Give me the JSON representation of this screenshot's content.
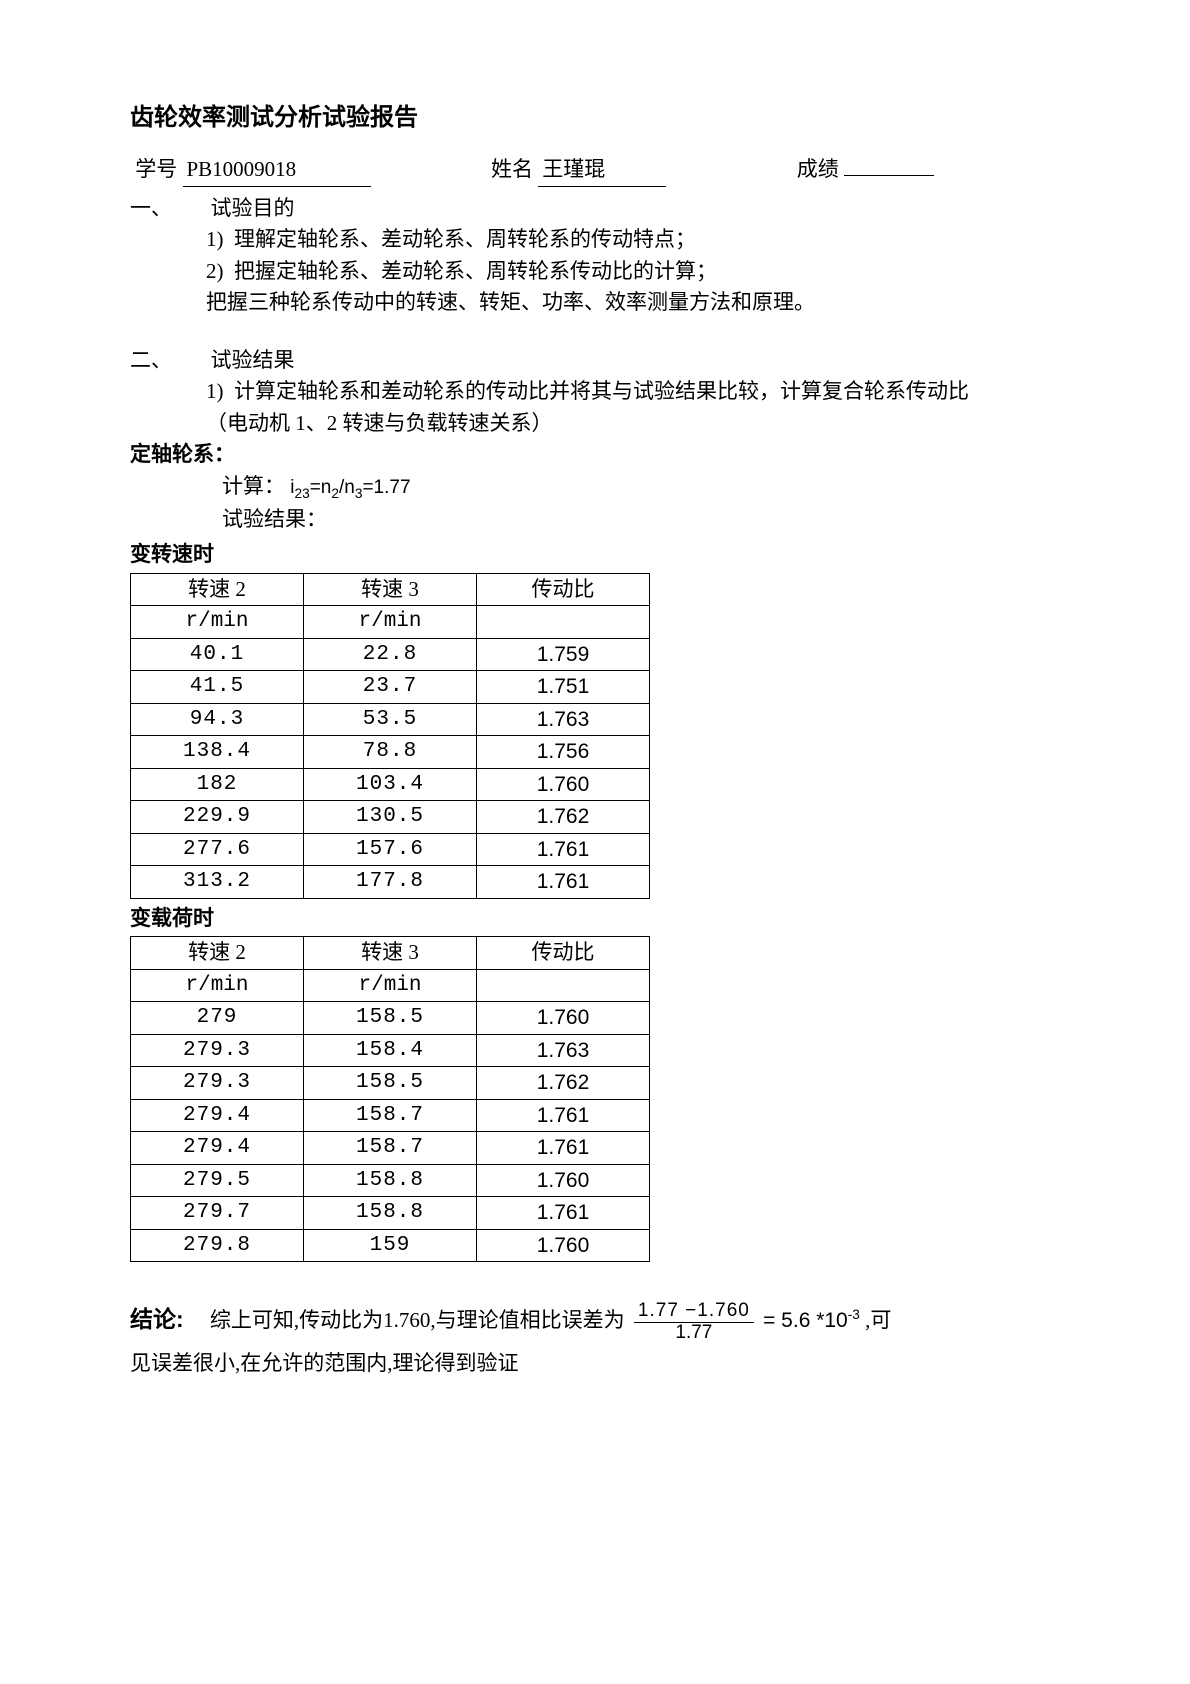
{
  "title": "齿轮效率测试分析试验报告",
  "info": {
    "id_label": "学号",
    "id_value": "PB10009018",
    "name_label": "姓名",
    "name_value": "王瑾琨",
    "score_label": "成绩"
  },
  "sec1": {
    "num": "一、",
    "head": "试验目的",
    "item1_num": "1)",
    "item1": "理解定轴轮系、差动轮系、周转轮系的传动特点；",
    "item2_num": "2)",
    "item2": "把握定轴轮系、差动轮系、周转轮系传动比的计算；",
    "item3": "把握三种轮系传动中的转速、转矩、功率、效率测量方法和原理。"
  },
  "sec2": {
    "num": "二、",
    "head": "试验结果",
    "item1_num": "1)",
    "item1": "计算定轴轮系和差动轮系的传动比并将其与试验结果比较，计算复合轮系传动比（电动机 1、2 转速与负载转速关系）"
  },
  "fixed_axis_label": "定轴轮系：",
  "calc_label": "计算：",
  "formula_text": "i₍₂₃₎=n₂/n₃=1.77",
  "exp_result_label": "试验结果：",
  "var_speed_label": "变转速时",
  "var_load_label": "变载荷时",
  "table_headers": {
    "c1": "转速 2",
    "c2": "转速 3",
    "c3": "传动比",
    "unit": "r/min"
  },
  "table1_rows": [
    [
      "40.1",
      "22.8",
      "1.759"
    ],
    [
      "41.5",
      "23.7",
      "1.751"
    ],
    [
      "94.3",
      "53.5",
      "1.763"
    ],
    [
      "138.4",
      "78.8",
      "1.756"
    ],
    [
      "182",
      "103.4",
      "1.760"
    ],
    [
      "229.9",
      "130.5",
      "1.762"
    ],
    [
      "277.6",
      "157.6",
      "1.761"
    ],
    [
      "313.2",
      "177.8",
      "1.761"
    ]
  ],
  "table2_rows": [
    [
      "279",
      "158.5",
      "1.760"
    ],
    [
      "279.3",
      "158.4",
      "1.763"
    ],
    [
      "279.3",
      "158.5",
      "1.762"
    ],
    [
      "279.4",
      "158.7",
      "1.761"
    ],
    [
      "279.4",
      "158.7",
      "1.761"
    ],
    [
      "279.5",
      "158.8",
      "1.760"
    ],
    [
      "279.7",
      "158.8",
      "1.761"
    ],
    [
      "279.8",
      "159",
      "1.760"
    ]
  ],
  "conclusion": {
    "label": "结论:",
    "pre": "综上可知,传动比为1.760,与理论值相比误差为",
    "frac_num": "1.77 −1.760",
    "frac_den": "1.77",
    "eq": " = 5.6 *10",
    "exp": "-3",
    "post1": " ,可",
    "post2": "见误差很小,在允许的范围内,理论得到验证"
  }
}
